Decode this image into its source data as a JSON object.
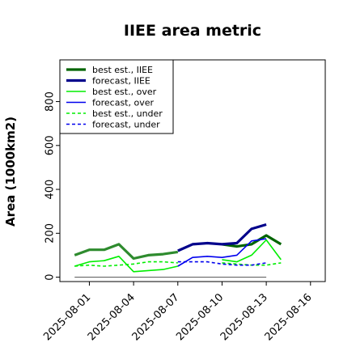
{
  "chart_data": {
    "type": "line",
    "title": "IIEE area metric",
    "ylabel": "Area (1000km2)",
    "xlabel": "",
    "ylim": [
      -20,
      990
    ],
    "xlim": [
      "2025-07-30",
      "2025-08-17"
    ],
    "yticks": [
      0,
      200,
      400,
      600,
      800
    ],
    "xticks": [
      "2025-08-01",
      "2025-08-04",
      "2025-08-07",
      "2025-08-10",
      "2025-08-13",
      "2025-08-16"
    ],
    "highlight_tick": "2025-08-07",
    "grid": false,
    "legend_position": "top-left",
    "x": [
      "2025-07-30",
      "2025-07-31",
      "2025-08-01",
      "2025-08-02",
      "2025-08-03",
      "2025-08-04",
      "2025-08-05",
      "2025-08-06",
      "2025-08-07",
      "2025-08-08",
      "2025-08-09",
      "2025-08-10",
      "2025-08-11",
      "2025-08-12",
      "2025-08-13",
      "2025-08-14"
    ],
    "series": [
      {
        "name": "best est., IIEE",
        "color": "#006400",
        "width": 3.2,
        "dash": "",
        "values": [
          null,
          null,
          null,
          null,
          null,
          null,
          null,
          null,
          null,
          null,
          null,
          150,
          140,
          150,
          190,
          150
        ]
      },
      {
        "name": "forecast, IIEE",
        "color": "#00008b",
        "width": 3.2,
        "dash": "",
        "values": [
          null,
          null,
          null,
          null,
          null,
          null,
          null,
          null,
          120,
          150,
          155,
          150,
          155,
          220,
          240,
          null
        ]
      },
      {
        "name": "best est., over",
        "color": "#00ee00",
        "width": 1.6,
        "dash": "",
        "values": [
          null,
          null,
          null,
          null,
          null,
          null,
          null,
          null,
          null,
          null,
          null,
          80,
          70,
          100,
          170,
          80
        ]
      },
      {
        "name": "forecast, over",
        "color": "#0000ee",
        "width": 1.6,
        "dash": "",
        "values": [
          null,
          null,
          null,
          null,
          null,
          null,
          null,
          null,
          50,
          90,
          95,
          90,
          100,
          165,
          175,
          null
        ]
      },
      {
        "name": "best est., under",
        "color": "#00ee00",
        "width": 1.6,
        "dash": "4,3",
        "values": [
          null,
          null,
          null,
          null,
          null,
          null,
          null,
          null,
          null,
          null,
          null,
          65,
          60,
          55,
          55,
          65
        ]
      },
      {
        "name": "forecast, under",
        "color": "#0000ee",
        "width": 1.6,
        "dash": "4,3",
        "values": [
          null,
          null,
          null,
          null,
          null,
          null,
          null,
          null,
          70,
          70,
          70,
          60,
          55,
          55,
          65,
          null
        ]
      }
    ],
    "history": [
      {
        "color": "#2e8b2e",
        "width": 3.2,
        "dash": "",
        "values": [
          null,
          100,
          125,
          125,
          150,
          85,
          100,
          105,
          115,
          null,
          null,
          null,
          null,
          null,
          null,
          null
        ]
      },
      {
        "color": "#00ee00",
        "width": 1.6,
        "dash": "",
        "values": [
          null,
          50,
          70,
          75,
          95,
          25,
          30,
          35,
          50,
          null,
          null,
          null,
          null,
          null,
          null,
          null
        ]
      },
      {
        "color": "#00ee00",
        "width": 1.6,
        "dash": "4,3",
        "values": [
          null,
          50,
          55,
          50,
          55,
          60,
          70,
          70,
          65,
          null,
          null,
          null,
          null,
          null,
          null,
          null
        ]
      }
    ],
    "baseline": {
      "color": "#666666",
      "value": 0,
      "from": "2025-07-31",
      "to": "2025-08-13"
    }
  }
}
